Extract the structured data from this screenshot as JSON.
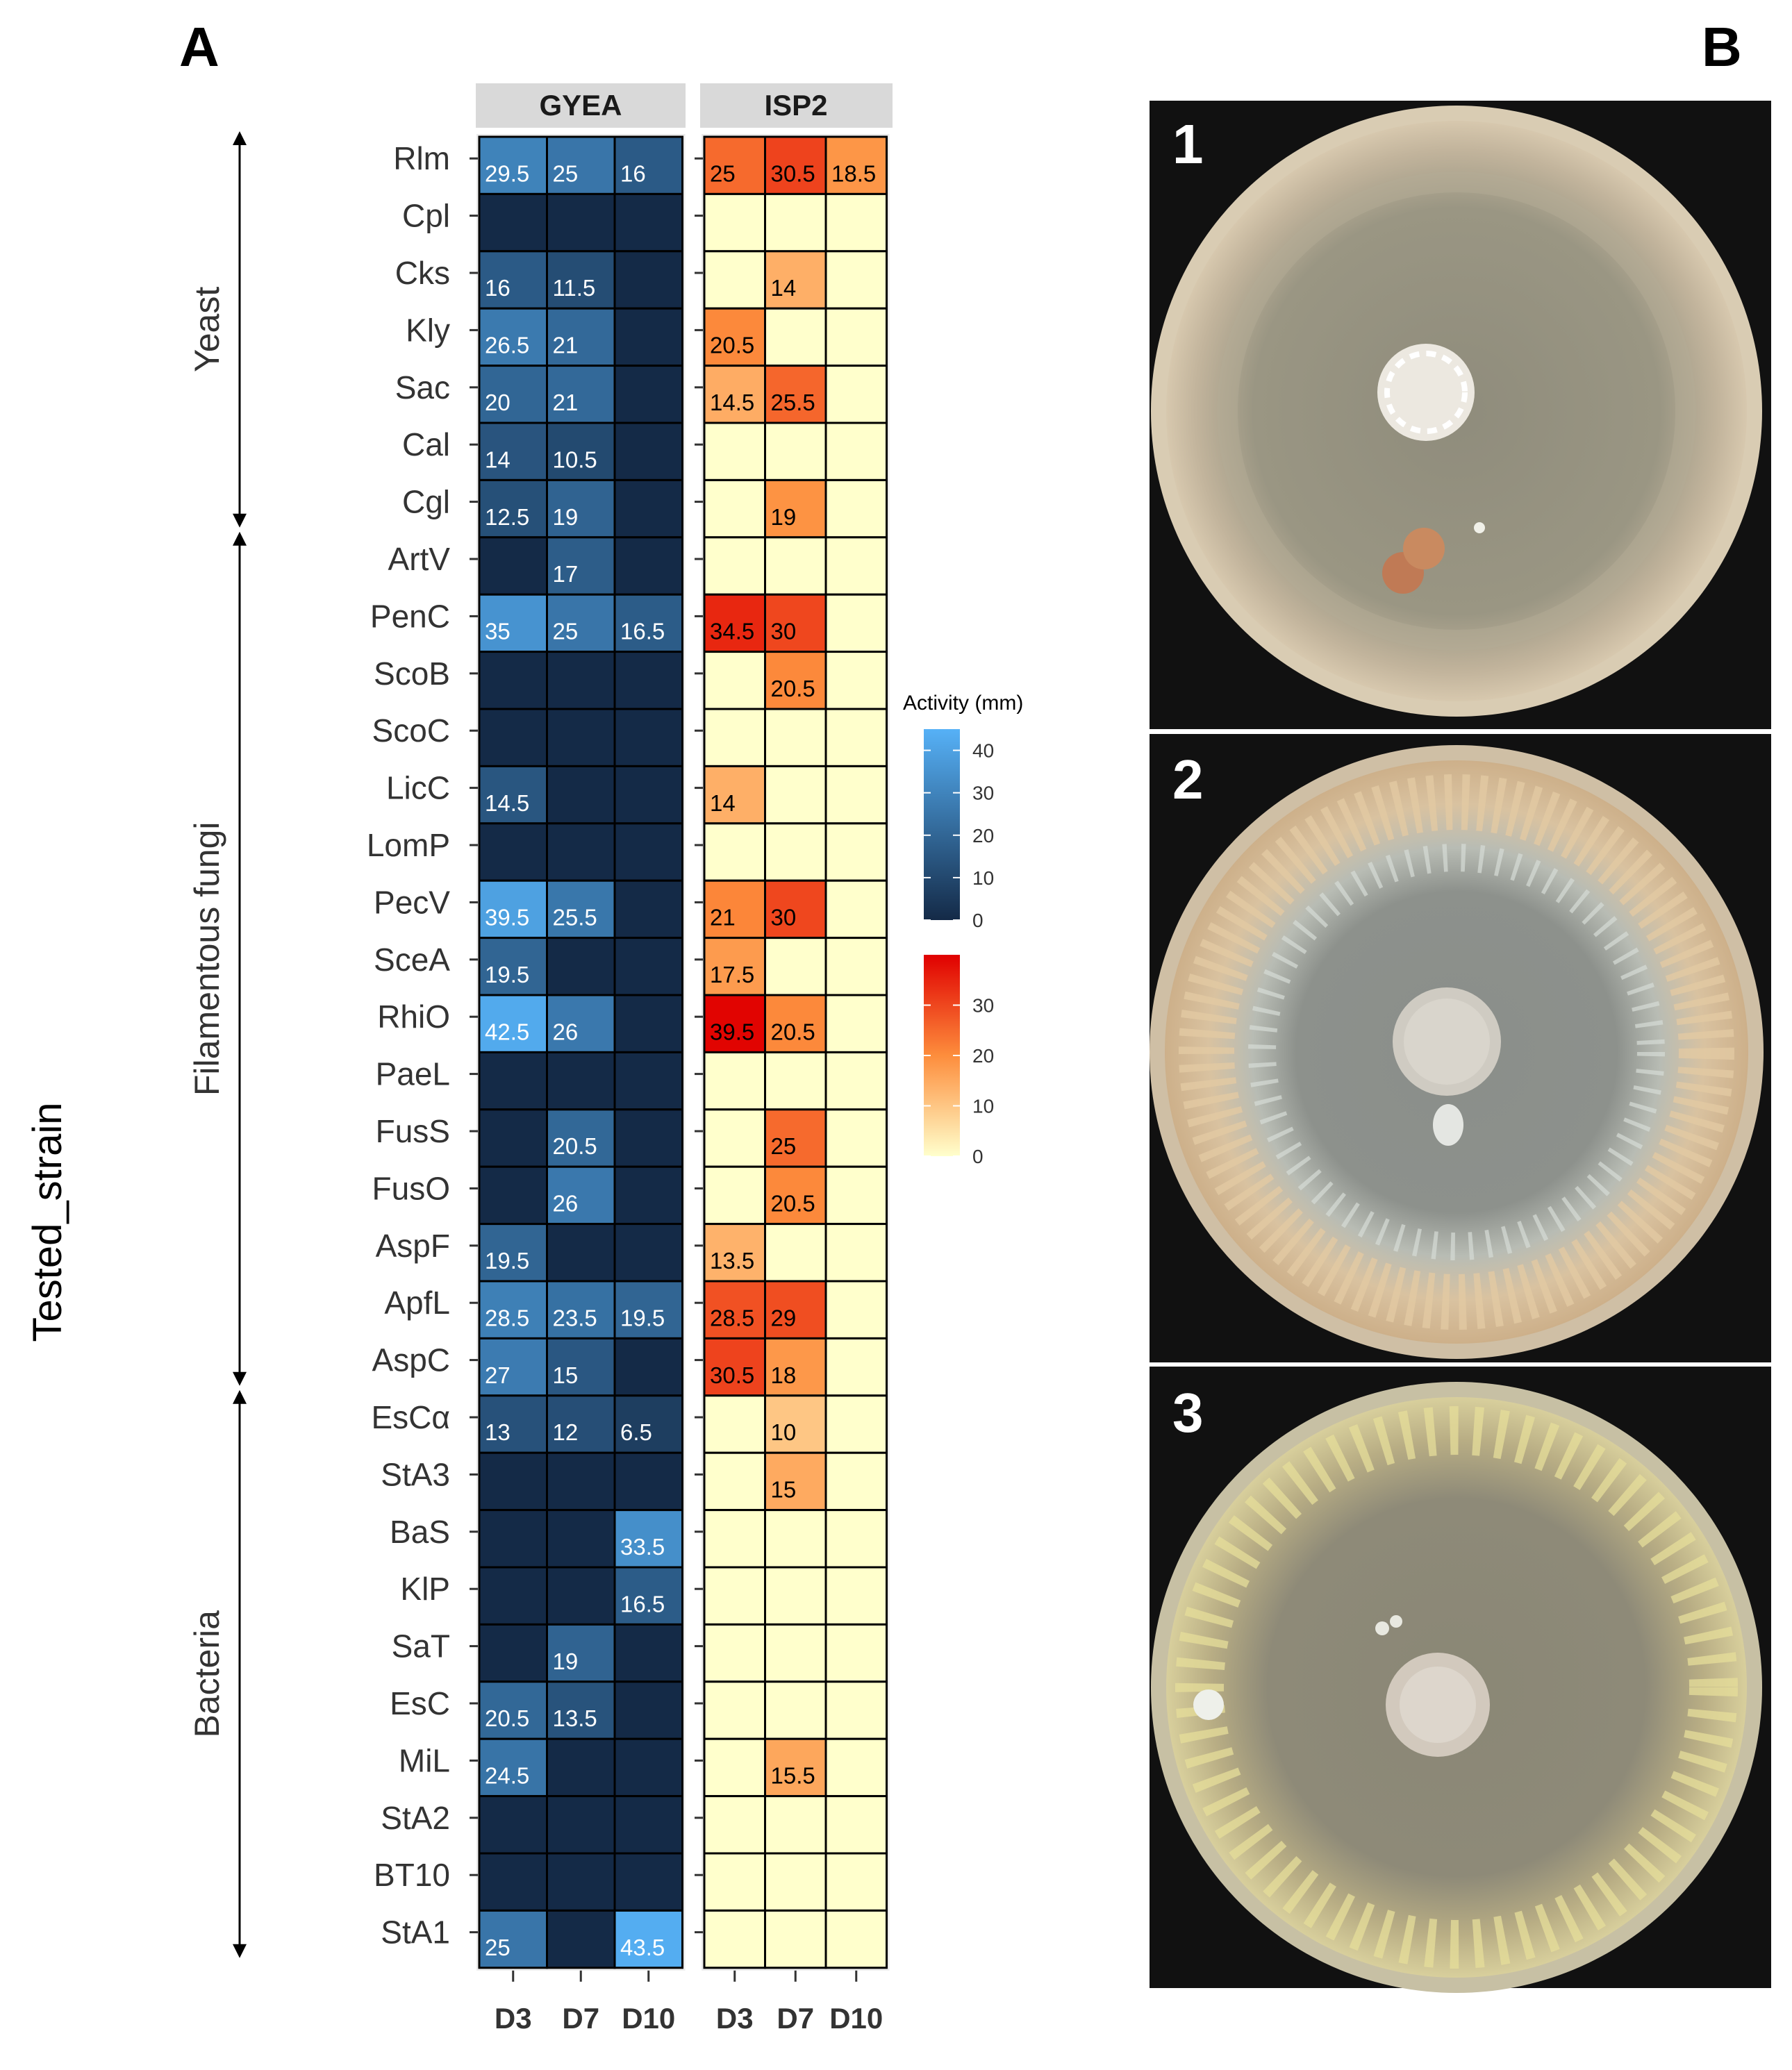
{
  "panel_a_label": "A",
  "panel_b_label": "B",
  "chart_data": {
    "type": "heatmap",
    "ylabel": "Tested_strain",
    "facets": [
      "GYEA",
      "ISP2"
    ],
    "days": [
      "D3",
      "D7",
      "D10"
    ],
    "strains": [
      "Rlm",
      "Cpl",
      "Cks",
      "Kly",
      "Sac",
      "Cal",
      "Cgl",
      "ArtV",
      "PenC",
      "ScoB",
      "ScoC",
      "LicC",
      "LomP",
      "PecV",
      "SceA",
      "RhiO",
      "PaeL",
      "FusS",
      "FusO",
      "AspF",
      "ApfL",
      "AspC",
      "EsCα",
      "StA3",
      "BaS",
      "KlP",
      "SaT",
      "EsC",
      "MiL",
      "StA2",
      "BT10",
      "StA1"
    ],
    "groups": [
      {
        "name": "Yeast",
        "first": "Rlm",
        "last": "Cgl"
      },
      {
        "name": "Filamentous fungi",
        "first": "ArtV",
        "last": "AspC"
      },
      {
        "name": "Bacteria",
        "first": "EsCα",
        "last": "StA1"
      }
    ],
    "values": {
      "GYEA": [
        [
          29.5,
          25,
          16
        ],
        [
          0,
          0,
          0
        ],
        [
          16,
          11.5,
          0
        ],
        [
          26.5,
          21,
          0
        ],
        [
          20,
          21,
          0
        ],
        [
          14,
          10.5,
          0
        ],
        [
          12.5,
          19,
          0
        ],
        [
          0,
          17,
          0
        ],
        [
          35,
          25,
          16.5
        ],
        [
          0,
          0,
          0
        ],
        [
          0,
          0,
          0
        ],
        [
          14.5,
          0,
          0
        ],
        [
          0,
          0,
          0
        ],
        [
          39.5,
          25.5,
          0
        ],
        [
          19.5,
          0,
          0
        ],
        [
          42.5,
          26,
          0
        ],
        [
          0,
          0,
          0
        ],
        [
          0,
          20.5,
          0
        ],
        [
          0,
          26,
          0
        ],
        [
          19.5,
          0,
          0
        ],
        [
          28.5,
          23.5,
          19.5
        ],
        [
          27,
          15,
          0
        ],
        [
          13,
          12,
          6.5
        ],
        [
          0,
          0,
          0
        ],
        [
          0,
          0,
          33.5
        ],
        [
          0,
          0,
          16.5
        ],
        [
          0,
          19,
          0
        ],
        [
          20.5,
          13.5,
          0
        ],
        [
          24.5,
          0,
          0
        ],
        [
          0,
          0,
          0
        ],
        [
          0,
          0,
          0
        ],
        [
          25,
          0,
          43.5
        ]
      ],
      "ISP2": [
        [
          25,
          30.5,
          18.5
        ],
        [
          0,
          0,
          0
        ],
        [
          0,
          14,
          0
        ],
        [
          20.5,
          0,
          0
        ],
        [
          14.5,
          25.5,
          0
        ],
        [
          0,
          0,
          0
        ],
        [
          0,
          19,
          0
        ],
        [
          0,
          0,
          0
        ],
        [
          34.5,
          30,
          0
        ],
        [
          0,
          20.5,
          0
        ],
        [
          0,
          0,
          0
        ],
        [
          14,
          0,
          0
        ],
        [
          0,
          0,
          0
        ],
        [
          21,
          30,
          0
        ],
        [
          17.5,
          0,
          0
        ],
        [
          39.5,
          20.5,
          0
        ],
        [
          0,
          0,
          0
        ],
        [
          0,
          25,
          0
        ],
        [
          0,
          20.5,
          0
        ],
        [
          13.5,
          0,
          0
        ],
        [
          28.5,
          29,
          0
        ],
        [
          30.5,
          18,
          0
        ],
        [
          0,
          10,
          0
        ],
        [
          0,
          15,
          0
        ],
        [
          0,
          0,
          0
        ],
        [
          0,
          0,
          0
        ],
        [
          0,
          0,
          0
        ],
        [
          0,
          0,
          0
        ],
        [
          0,
          15.5,
          0
        ],
        [
          0,
          0,
          0
        ],
        [
          0,
          0,
          0
        ],
        [
          0,
          0,
          0
        ]
      ]
    },
    "legend": {
      "title": "Activity (mm)",
      "gyea_range": [
        0,
        45
      ],
      "gyea_ticks": [
        0,
        10,
        20,
        30,
        40
      ],
      "isp2_range": [
        0,
        40
      ],
      "isp2_ticks": [
        0,
        10,
        20,
        30
      ]
    },
    "colors": {
      "gyea_low": "#142a47",
      "gyea_high": "#56b1f7",
      "isp2_low": "#ffffcc",
      "isp2_mid": "#fd8d3c",
      "isp2_high": "#e00000",
      "strip": "#d9d9d9"
    }
  },
  "photos": [
    {
      "label": "1"
    },
    {
      "label": "2"
    },
    {
      "label": "3"
    }
  ]
}
